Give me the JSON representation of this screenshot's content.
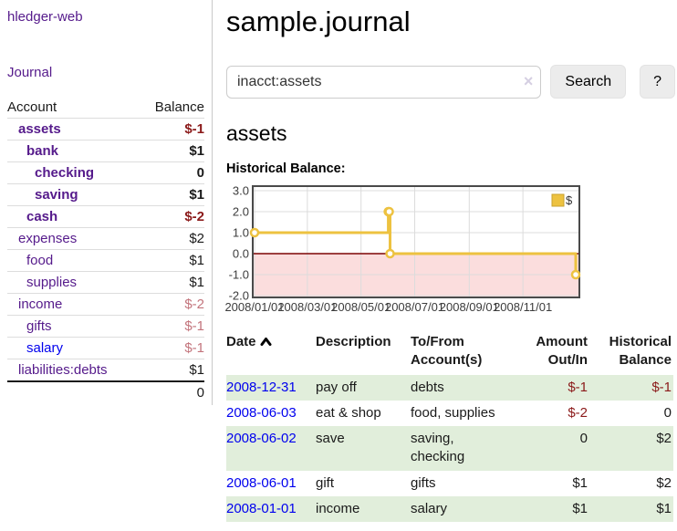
{
  "sidebar": {
    "brand": "hledger-web",
    "nav_journal": "Journal",
    "accounts_table": {
      "headers": [
        "Account",
        "Balance"
      ],
      "rows": [
        {
          "name": "assets",
          "balance": "$-1"
        },
        {
          "name": "bank",
          "balance": "$1"
        },
        {
          "name": "checking",
          "balance": "0"
        },
        {
          "name": "saving",
          "balance": "$1"
        },
        {
          "name": "cash",
          "balance": "$-2"
        },
        {
          "name": "expenses",
          "balance": "$2"
        },
        {
          "name": "food",
          "balance": "$1"
        },
        {
          "name": "supplies",
          "balance": "$1"
        },
        {
          "name": "income",
          "balance": "$-2"
        },
        {
          "name": "gifts",
          "balance": "$-1"
        },
        {
          "name": "salary",
          "balance": "$-1"
        },
        {
          "name": "liabilities:debts",
          "balance": "$1"
        }
      ],
      "total": "0"
    }
  },
  "header": {
    "title": "sample.journal"
  },
  "search": {
    "value": "inacct:assets",
    "clear_icon": "×",
    "button": "Search",
    "help_button": "?"
  },
  "account_page": {
    "title": "assets",
    "chart_label": "Historical Balance:"
  },
  "chart_data": {
    "type": "line",
    "step": true,
    "title": "Historical Balance:",
    "series": [
      {
        "name": "$",
        "color": "#edc240",
        "points": [
          [
            "2008-01-01",
            1
          ],
          [
            "2008-06-01",
            2
          ],
          [
            "2008-06-02",
            2
          ],
          [
            "2008-06-03",
            0
          ],
          [
            "2008-12-31",
            -1
          ]
        ]
      }
    ],
    "x_range": [
      "2008-01-01",
      "2008-12-31"
    ],
    "ylim": [
      -2,
      3
    ],
    "y_ticks": [
      3.0,
      2.0,
      1.0,
      0.0,
      -1.0,
      -2.0
    ],
    "x_tick_labels": [
      "2008/01/01",
      "2008/03/01",
      "2008/05/01",
      "2008/07/01",
      "2008/09/01",
      "2008/11/01"
    ],
    "legend_position": "top-right",
    "grid": true,
    "grid_color": "#dcdcdc",
    "negative_region_color": "#fbdddd",
    "zero_line_color": "#7c0505",
    "border_color": "#4a4a4a",
    "marker_fill": "#ffffff"
  },
  "register": {
    "headers": {
      "date": "Date",
      "description": "Description",
      "accounts": "To/From Account(s)",
      "amount": "Amount Out/In",
      "balance": "Historical Balance"
    },
    "rows": [
      {
        "date": "2008-12-31",
        "description": "pay off",
        "accounts": "debts",
        "amount": "$-1",
        "balance": "$-1"
      },
      {
        "date": "2008-06-03",
        "description": "eat & shop",
        "accounts": "food, supplies",
        "amount": "$-2",
        "balance": "0"
      },
      {
        "date": "2008-06-02",
        "description": "save",
        "accounts": "saving, checking",
        "amount": "0",
        "balance": "$2"
      },
      {
        "date": "2008-06-01",
        "description": "gift",
        "accounts": "gifts",
        "amount": "$1",
        "balance": "$2"
      },
      {
        "date": "2008-01-01",
        "description": "income",
        "accounts": "salary",
        "amount": "$1",
        "balance": "$1"
      }
    ]
  }
}
